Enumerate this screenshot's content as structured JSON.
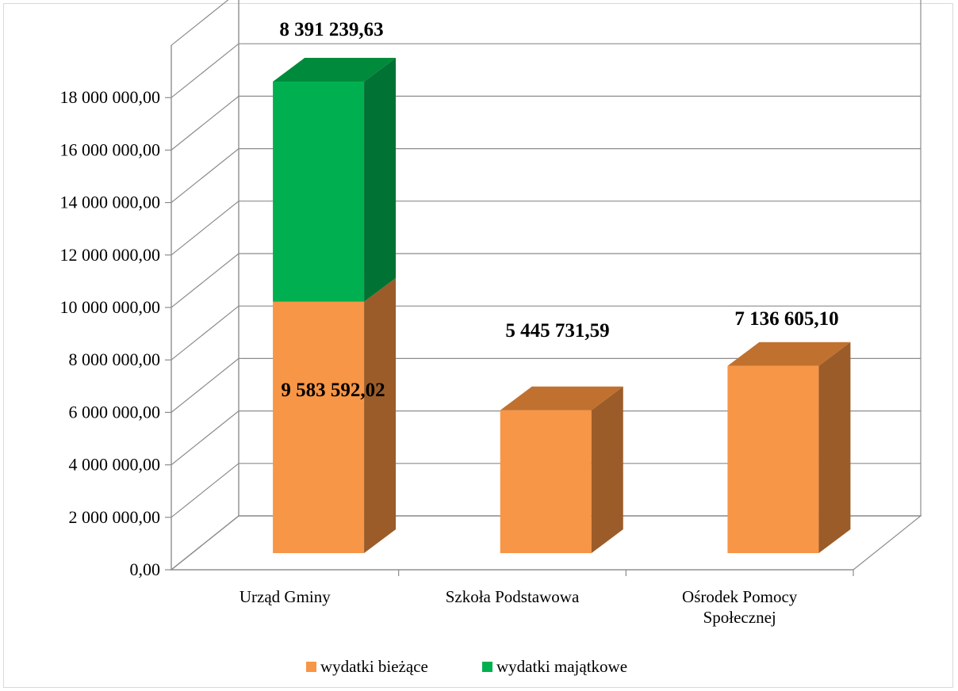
{
  "chart_data": {
    "type": "bar",
    "stacked": true,
    "three_d": true,
    "grid": true,
    "legend_position": "bottom",
    "title": "",
    "xlabel": "",
    "ylabel": "",
    "ylim": [
      0,
      18000000
    ],
    "y_tick_step": 2000000,
    "y_tick_labels": [
      "0,00",
      "2 000 000,00",
      "4 000 000,00",
      "6 000 000,00",
      "8 000 000,00",
      "10 000 000,00",
      "12 000 000,00",
      "14 000 000,00",
      "16 000 000,00",
      "18 000 000,00"
    ],
    "categories": [
      [
        "Urząd Gminy"
      ],
      [
        "Szkoła Podstawowa"
      ],
      [
        "Ośrodek Pomocy",
        "Społecznej"
      ]
    ],
    "series": [
      {
        "name": "wydatki bieżące",
        "color": "#f79646",
        "top_color": "#c0712f",
        "side_color": "#9b5c29",
        "values": [
          9583592.02,
          5445731.59,
          7136605.1
        ],
        "labels": [
          "9 583 592,02",
          "5 445 731,59",
          "7 136 605,10"
        ]
      },
      {
        "name": "wydatki majątkowe",
        "color": "#00b050",
        "top_color": "#008a3c",
        "side_color": "#007233",
        "values": [
          8391239.63,
          null,
          null
        ],
        "labels": [
          "8 391 239,63",
          null,
          null
        ]
      }
    ]
  }
}
